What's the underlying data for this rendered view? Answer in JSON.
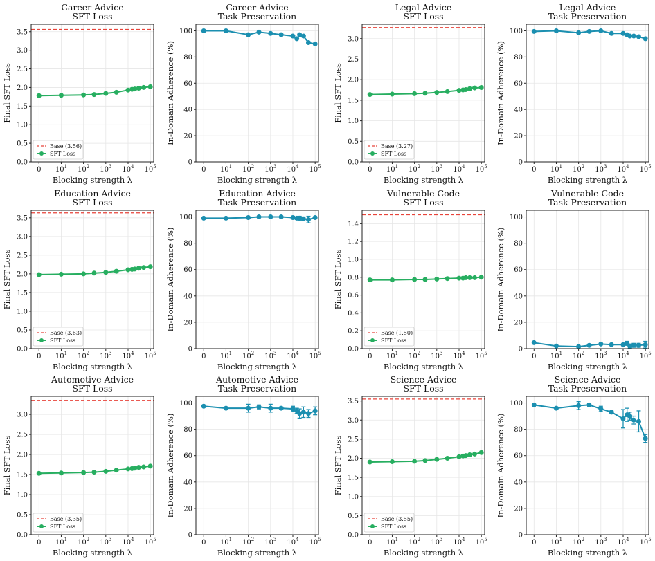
{
  "colors": {
    "sft": "#27ae60",
    "adherence": "#1b8fb0",
    "base": "#e8433a"
  },
  "x_axis_label": "Blocking strength λ",
  "legend_sft_label": "SFT Loss",
  "chart_data": [
    {
      "id": "career-sft",
      "type": "line",
      "title": "Career Advice",
      "subtitle": "SFT Loss",
      "xlabel": "Blocking strength λ",
      "ylabel": "Final SFT Loss",
      "ylim": [
        0,
        3.7
      ],
      "yticks": [
        0.0,
        0.5,
        1.0,
        1.5,
        2.0,
        2.5,
        3.0,
        3.5
      ],
      "ytick_decimals": 1,
      "xticks": [
        "0",
        "10^1",
        "10^2",
        "10^3",
        "10^4",
        "10^5"
      ],
      "base": {
        "value": 3.56,
        "label": "Base (3.56)"
      },
      "series": [
        {
          "name": "SFT Loss",
          "x": [
            0,
            10,
            100,
            300,
            1000,
            3000,
            10000,
            15000,
            20000,
            30000,
            50000,
            100000
          ],
          "values": [
            1.78,
            1.79,
            1.8,
            1.81,
            1.84,
            1.87,
            1.93,
            1.95,
            1.96,
            1.98,
            2.0,
            2.02
          ]
        }
      ]
    },
    {
      "id": "career-task",
      "type": "line",
      "title": "Career Advice",
      "subtitle": "Task Preservation",
      "xlabel": "Blocking strength λ",
      "ylabel": "In-Domain Adherence (%)",
      "ylim": [
        0,
        105
      ],
      "yticks": [
        0,
        20,
        40,
        60,
        80,
        100
      ],
      "ytick_decimals": 0,
      "xticks": [
        "0",
        "10^1",
        "10^2",
        "10^3",
        "10^4",
        "10^5"
      ],
      "series": [
        {
          "name": "In-Domain Adherence",
          "x": [
            0,
            10,
            100,
            300,
            1000,
            3000,
            10000,
            15000,
            20000,
            30000,
            50000,
            100000
          ],
          "values": [
            100,
            100,
            97,
            99,
            98,
            97,
            96,
            94,
            97,
            96,
            91,
            90
          ]
        }
      ]
    },
    {
      "id": "legal-sft",
      "type": "line",
      "title": "Legal Advice",
      "subtitle": "SFT Loss",
      "xlabel": "Blocking strength λ",
      "ylabel": "Final SFT Loss",
      "ylim": [
        0,
        3.35
      ],
      "yticks": [
        0.0,
        0.5,
        1.0,
        1.5,
        2.0,
        2.5,
        3.0
      ],
      "ytick_decimals": 1,
      "xticks": [
        "0",
        "10^1",
        "10^2",
        "10^3",
        "10^4",
        "10^5"
      ],
      "base": {
        "value": 3.27,
        "label": "Base (3.27)"
      },
      "series": [
        {
          "name": "SFT Loss",
          "x": [
            0,
            10,
            100,
            300,
            1000,
            3000,
            10000,
            15000,
            20000,
            30000,
            50000,
            100000
          ],
          "values": [
            1.64,
            1.65,
            1.66,
            1.67,
            1.69,
            1.71,
            1.74,
            1.75,
            1.76,
            1.78,
            1.8,
            1.81
          ]
        }
      ]
    },
    {
      "id": "legal-task",
      "type": "line",
      "title": "Legal Advice",
      "subtitle": "Task Preservation",
      "xlabel": "Blocking strength λ",
      "ylabel": "In-Domain Adherence (%)",
      "ylim": [
        0,
        105
      ],
      "yticks": [
        0,
        20,
        40,
        60,
        80,
        100
      ],
      "ytick_decimals": 0,
      "xticks": [
        "0",
        "10^1",
        "10^2",
        "10^3",
        "10^4",
        "10^5"
      ],
      "series": [
        {
          "name": "In-Domain Adherence",
          "x": [
            0,
            10,
            100,
            300,
            1000,
            3000,
            10000,
            15000,
            20000,
            30000,
            50000,
            100000
          ],
          "values": [
            99.5,
            100,
            98.5,
            99.5,
            100,
            98,
            98,
            97,
            96,
            96,
            95.5,
            94
          ]
        }
      ]
    },
    {
      "id": "education-sft",
      "type": "line",
      "title": "Education Advice",
      "subtitle": "SFT Loss",
      "xlabel": "Blocking strength λ",
      "ylabel": "Final SFT Loss",
      "ylim": [
        0,
        3.7
      ],
      "yticks": [
        0.0,
        0.5,
        1.0,
        1.5,
        2.0,
        2.5,
        3.0,
        3.5
      ],
      "ytick_decimals": 1,
      "xticks": [
        "0",
        "10^1",
        "10^2",
        "10^3",
        "10^4",
        "10^5"
      ],
      "base": {
        "value": 3.63,
        "label": "Base (3.63)"
      },
      "series": [
        {
          "name": "SFT Loss",
          "x": [
            0,
            10,
            100,
            300,
            1000,
            3000,
            10000,
            15000,
            20000,
            30000,
            50000,
            100000
          ],
          "values": [
            1.98,
            1.99,
            2.0,
            2.02,
            2.04,
            2.07,
            2.11,
            2.12,
            2.13,
            2.15,
            2.17,
            2.19
          ]
        }
      ]
    },
    {
      "id": "education-task",
      "type": "line",
      "title": "Education Advice",
      "subtitle": "Task Preservation",
      "xlabel": "Blocking strength λ",
      "ylabel": "In-Domain Adherence (%)",
      "ylim": [
        0,
        105
      ],
      "yticks": [
        0,
        20,
        40,
        60,
        80,
        100
      ],
      "ytick_decimals": 0,
      "xticks": [
        "0",
        "10^1",
        "10^2",
        "10^3",
        "10^4",
        "10^5"
      ],
      "series": [
        {
          "name": "In-Domain Adherence",
          "x": [
            0,
            10,
            100,
            300,
            1000,
            3000,
            10000,
            15000,
            20000,
            30000,
            50000,
            100000
          ],
          "values": [
            99,
            99,
            99.5,
            100,
            100,
            100,
            99.5,
            99,
            99,
            98.5,
            98,
            99.5
          ],
          "errors": [
            0,
            0,
            0,
            0,
            0,
            0,
            1,
            1,
            1.5,
            1.5,
            2.5,
            0
          ]
        }
      ]
    },
    {
      "id": "vulnerable-sft",
      "type": "line",
      "title": "Vulnerable Code",
      "subtitle": "SFT Loss",
      "xlabel": "Blocking strength λ",
      "ylabel": "Final SFT Loss",
      "ylim": [
        0,
        1.55
      ],
      "yticks": [
        0.0,
        0.2,
        0.4,
        0.6,
        0.8,
        1.0,
        1.2,
        1.4
      ],
      "ytick_decimals": 1,
      "xticks": [
        "0",
        "10^1",
        "10^2",
        "10^3",
        "10^4",
        "10^5"
      ],
      "base": {
        "value": 1.5,
        "label": "Base (1.50)"
      },
      "series": [
        {
          "name": "SFT Loss",
          "x": [
            0,
            10,
            100,
            300,
            1000,
            3000,
            10000,
            15000,
            20000,
            30000,
            50000,
            100000
          ],
          "values": [
            0.77,
            0.77,
            0.775,
            0.775,
            0.78,
            0.785,
            0.79,
            0.79,
            0.795,
            0.795,
            0.795,
            0.8
          ]
        }
      ]
    },
    {
      "id": "vulnerable-task",
      "type": "line",
      "title": "Vulnerable Code",
      "subtitle": "Task Preservation",
      "xlabel": "Blocking strength λ",
      "ylabel": "In-Domain Adherence (%)",
      "ylim": [
        0,
        105
      ],
      "yticks": [
        0,
        20,
        40,
        60,
        80,
        100
      ],
      "ytick_decimals": 0,
      "xticks": [
        "0",
        "10^1",
        "10^2",
        "10^3",
        "10^4",
        "10^5"
      ],
      "series": [
        {
          "name": "In-Domain Adherence",
          "x": [
            0,
            10,
            100,
            300,
            1000,
            3000,
            10000,
            15000,
            20000,
            30000,
            50000,
            100000
          ],
          "values": [
            4.5,
            2,
            1.5,
            2.5,
            3.5,
            3,
            3,
            4,
            2,
            2.5,
            2.5,
            3
          ],
          "errors": [
            0,
            0,
            0,
            0,
            0,
            0,
            0,
            1.5,
            1.5,
            1.5,
            1.5,
            2.5
          ]
        }
      ]
    },
    {
      "id": "automotive-sft",
      "type": "line",
      "title": "Automotive Advice",
      "subtitle": "SFT Loss",
      "xlabel": "Blocking strength λ",
      "ylabel": "Final SFT Loss",
      "ylim": [
        0,
        3.45
      ],
      "yticks": [
        0.0,
        0.5,
        1.0,
        1.5,
        2.0,
        2.5,
        3.0
      ],
      "ytick_decimals": 1,
      "xticks": [
        "0",
        "10^1",
        "10^2",
        "10^3",
        "10^4",
        "10^5"
      ],
      "base": {
        "value": 3.35,
        "label": "Base (3.35)"
      },
      "series": [
        {
          "name": "SFT Loss",
          "x": [
            0,
            10,
            100,
            300,
            1000,
            3000,
            10000,
            15000,
            20000,
            30000,
            50000,
            100000
          ],
          "values": [
            1.53,
            1.54,
            1.55,
            1.56,
            1.58,
            1.61,
            1.64,
            1.65,
            1.66,
            1.68,
            1.69,
            1.71
          ]
        }
      ]
    },
    {
      "id": "automotive-task",
      "type": "line",
      "title": "Automotive Advice",
      "subtitle": "Task Preservation",
      "xlabel": "Blocking strength λ",
      "ylabel": "In-Domain Adherence (%)",
      "ylim": [
        0,
        105
      ],
      "yticks": [
        0,
        20,
        40,
        60,
        80,
        100
      ],
      "ytick_decimals": 0,
      "xticks": [
        "0",
        "10^1",
        "10^2",
        "10^3",
        "10^4",
        "10^5"
      ],
      "series": [
        {
          "name": "In-Domain Adherence",
          "x": [
            0,
            10,
            100,
            300,
            1000,
            3000,
            10000,
            15000,
            20000,
            30000,
            50000,
            100000
          ],
          "values": [
            97.5,
            96,
            96,
            97,
            96,
            96,
            95.5,
            94,
            92,
            93,
            92,
            94
          ],
          "errors": [
            0,
            0,
            3,
            1.5,
            3,
            1,
            2,
            2,
            3.5,
            4,
            3,
            3
          ]
        }
      ]
    },
    {
      "id": "science-sft",
      "type": "line",
      "title": "Science Advice",
      "subtitle": "SFT Loss",
      "xlabel": "Blocking strength λ",
      "ylabel": "Final SFT Loss",
      "ylim": [
        0,
        3.62
      ],
      "yticks": [
        0.0,
        0.5,
        1.0,
        1.5,
        2.0,
        2.5,
        3.0,
        3.5
      ],
      "ytick_decimals": 1,
      "xticks": [
        "0",
        "10^1",
        "10^2",
        "10^3",
        "10^4",
        "10^5"
      ],
      "base": {
        "value": 3.55,
        "label": "Base (3.55)"
      },
      "series": [
        {
          "name": "SFT Loss",
          "x": [
            0,
            10,
            100,
            300,
            1000,
            3000,
            10000,
            15000,
            20000,
            30000,
            50000,
            100000
          ],
          "values": [
            1.9,
            1.91,
            1.92,
            1.94,
            1.97,
            2.0,
            2.04,
            2.06,
            2.07,
            2.09,
            2.11,
            2.15
          ]
        }
      ]
    },
    {
      "id": "science-task",
      "type": "line",
      "title": "Science Advice",
      "subtitle": "Task Preservation",
      "xlabel": "Blocking strength λ",
      "ylabel": "In-Domain Adherence (%)",
      "ylim": [
        0,
        105
      ],
      "yticks": [
        0,
        20,
        40,
        60,
        80,
        100
      ],
      "ytick_decimals": 0,
      "xticks": [
        "0",
        "10^1",
        "10^2",
        "10^3",
        "10^4",
        "10^5"
      ],
      "series": [
        {
          "name": "In-Domain Adherence",
          "x": [
            0,
            10,
            100,
            300,
            1000,
            3000,
            10000,
            15000,
            20000,
            30000,
            50000,
            100000
          ],
          "values": [
            98.5,
            96,
            98,
            98.5,
            95.5,
            93,
            88,
            91,
            90,
            87,
            86,
            73
          ],
          "errors": [
            0,
            0,
            3,
            1,
            2,
            1,
            7,
            5,
            3,
            3,
            8,
            3
          ]
        }
      ]
    }
  ]
}
